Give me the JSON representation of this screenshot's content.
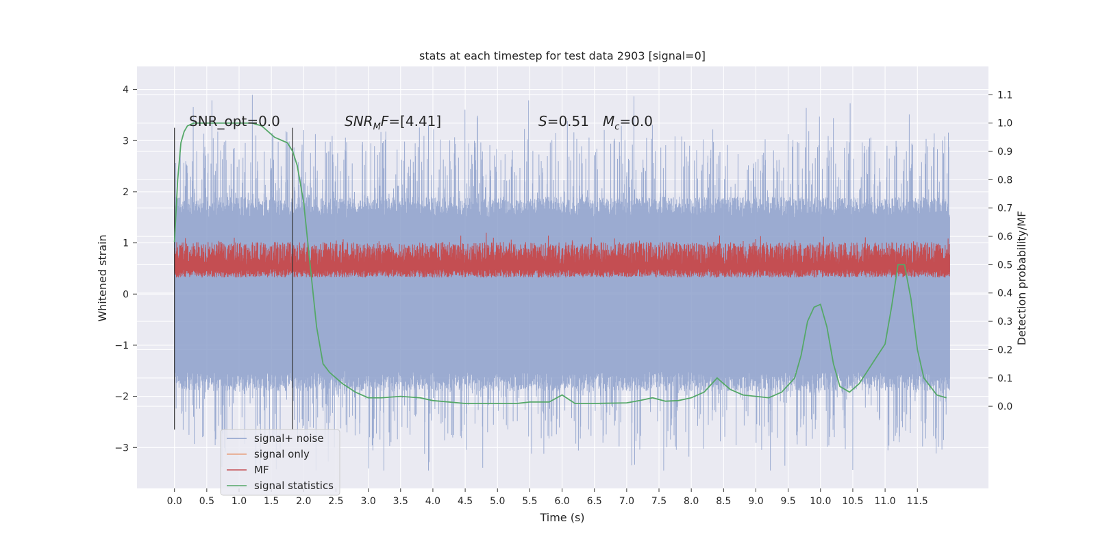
{
  "chart_data": {
    "type": "line",
    "title": "stats at each timestep for test data 2903 [signal=0]",
    "xlabel": "Time (s)",
    "ylabel": "Whitened strain",
    "y2label": "Detection probability/MF",
    "xlim": [
      -0.58,
      12.6
    ],
    "ylim": [
      -3.8,
      4.45
    ],
    "y2lim": [
      -0.29,
      1.2
    ],
    "xticks": [
      "0.0",
      "0.5",
      "1.0",
      "1.5",
      "2.0",
      "2.5",
      "3.0",
      "3.5",
      "4.0",
      "4.5",
      "5.0",
      "5.5",
      "6.0",
      "6.5",
      "7.0",
      "7.5",
      "8.0",
      "8.5",
      "9.0",
      "9.5",
      "10.0",
      "10.5",
      "11.0",
      "11.5"
    ],
    "yticks": [
      "4",
      "3",
      "2",
      "1",
      "0",
      "−1",
      "−2",
      "−3"
    ],
    "y2ticks": [
      "1.1",
      "1.0",
      "0.9",
      "0.8",
      "0.7",
      "0.6",
      "0.5",
      "0.4",
      "0.3",
      "0.2",
      "0.1",
      "0.0"
    ],
    "grid": true,
    "legend_position": "lower-left",
    "annotations": {
      "snr_opt": "SNR_opt=0.0",
      "snr_mf": "=[4.41]",
      "s_value": "=0.51",
      "mc_value": "=0.0"
    },
    "vertical_markers": [
      0.0,
      1.83
    ],
    "series": [
      {
        "name": "signal+ noise",
        "color": "#8da0cb",
        "axis": "left",
        "x_range": [
          0,
          12
        ],
        "envelope": [
          -3.45,
          4.1
        ],
        "typical": [
          -1.5,
          1.5
        ]
      },
      {
        "name": "signal only",
        "color": "#e8a07c",
        "axis": "left",
        "values": []
      },
      {
        "name": "MF",
        "color": "#c44e52",
        "axis": "right",
        "x_range": [
          0,
          12
        ],
        "typical": [
          0.5,
          0.58
        ],
        "peak": 0.62
      },
      {
        "name": "signal statistics",
        "color": "#55a868",
        "axis": "right",
        "x": [
          0.0,
          0.05,
          0.1,
          0.15,
          0.2,
          0.3,
          0.5,
          0.8,
          1.0,
          1.2,
          1.35,
          1.45,
          1.55,
          1.65,
          1.75,
          1.83,
          1.9,
          2.0,
          2.1,
          2.2,
          2.3,
          2.4,
          2.5,
          2.6,
          2.8,
          3.0,
          3.2,
          3.5,
          3.8,
          4.0,
          4.5,
          5.0,
          5.3,
          5.5,
          5.8,
          6.0,
          6.2,
          6.5,
          7.0,
          7.2,
          7.4,
          7.6,
          7.8,
          8.0,
          8.2,
          8.4,
          8.6,
          8.8,
          9.0,
          9.2,
          9.4,
          9.6,
          9.7,
          9.8,
          9.9,
          10.0,
          10.1,
          10.2,
          10.3,
          10.45,
          10.6,
          10.8,
          11.0,
          11.1,
          11.2,
          11.3,
          11.4,
          11.5,
          11.6,
          11.8,
          11.95
        ],
        "y": [
          0.58,
          0.8,
          0.93,
          0.97,
          0.99,
          1.0,
          1.0,
          1.0,
          1.0,
          1.0,
          0.99,
          0.97,
          0.95,
          0.94,
          0.93,
          0.9,
          0.85,
          0.72,
          0.5,
          0.28,
          0.15,
          0.12,
          0.1,
          0.08,
          0.05,
          0.03,
          0.03,
          0.035,
          0.03,
          0.02,
          0.01,
          0.01,
          0.01,
          0.015,
          0.015,
          0.04,
          0.01,
          0.01,
          0.012,
          0.02,
          0.03,
          0.018,
          0.02,
          0.03,
          0.05,
          0.1,
          0.06,
          0.04,
          0.035,
          0.03,
          0.05,
          0.1,
          0.18,
          0.3,
          0.35,
          0.36,
          0.28,
          0.15,
          0.07,
          0.05,
          0.08,
          0.15,
          0.22,
          0.35,
          0.5,
          0.5,
          0.38,
          0.2,
          0.1,
          0.04,
          0.03
        ]
      }
    ]
  }
}
